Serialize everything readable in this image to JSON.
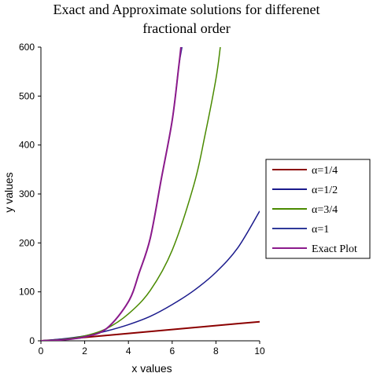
{
  "chart_data": {
    "type": "line",
    "title_lines": [
      "Exact and Approximate solutions for differenet",
      "fractional order"
    ],
    "xlabel": "x values",
    "ylabel": "y values",
    "xlim": [
      0,
      10
    ],
    "ylim": [
      0,
      600
    ],
    "xticks": [
      "0",
      "2",
      "4",
      "6",
      "8",
      "10"
    ],
    "yticks": [
      "0",
      "100",
      "200",
      "300",
      "400",
      "500",
      "600"
    ],
    "legend_position": "right",
    "series": [
      {
        "name": "α=1/4",
        "color": "#8b0000",
        "width": 2,
        "x": [
          0,
          1,
          2,
          3,
          4,
          5,
          6,
          7,
          8,
          9,
          10
        ],
        "y": [
          0,
          3,
          7,
          11,
          15,
          19,
          23,
          27,
          31,
          35,
          39
        ]
      },
      {
        "name": "α=1/2",
        "color": "#1a1a8c",
        "width": 1.5,
        "x": [
          0,
          1,
          2,
          3,
          4,
          5,
          6,
          7,
          8,
          9,
          10
        ],
        "y": [
          0,
          4,
          10,
          20,
          33,
          50,
          74,
          103,
          140,
          190,
          265
        ]
      },
      {
        "name": "α=3/4",
        "color": "#4a8a00",
        "width": 1.5,
        "x": [
          0,
          1,
          2,
          3,
          4,
          5,
          6,
          7,
          7.5,
          8,
          8.2
        ],
        "y": [
          0,
          3,
          10,
          25,
          55,
          103,
          185,
          320,
          420,
          535,
          600
        ]
      },
      {
        "name": "α=1",
        "color": "#2f3a99",
        "width": 1.5,
        "x": [
          0,
          1,
          2,
          3,
          4,
          4.5,
          5,
          5.5,
          6,
          6.3,
          6.45
        ],
        "y": [
          0,
          2,
          8,
          25,
          80,
          140,
          210,
          330,
          450,
          560,
          600
        ]
      },
      {
        "name": "Exact Plot",
        "color": "#8b1a8b",
        "width": 2,
        "x": [
          0,
          1,
          2,
          3,
          4,
          4.5,
          5,
          5.5,
          6,
          6.3,
          6.4
        ],
        "y": [
          0,
          2,
          8,
          25,
          80,
          140,
          210,
          330,
          450,
          560,
          600
        ]
      }
    ]
  }
}
